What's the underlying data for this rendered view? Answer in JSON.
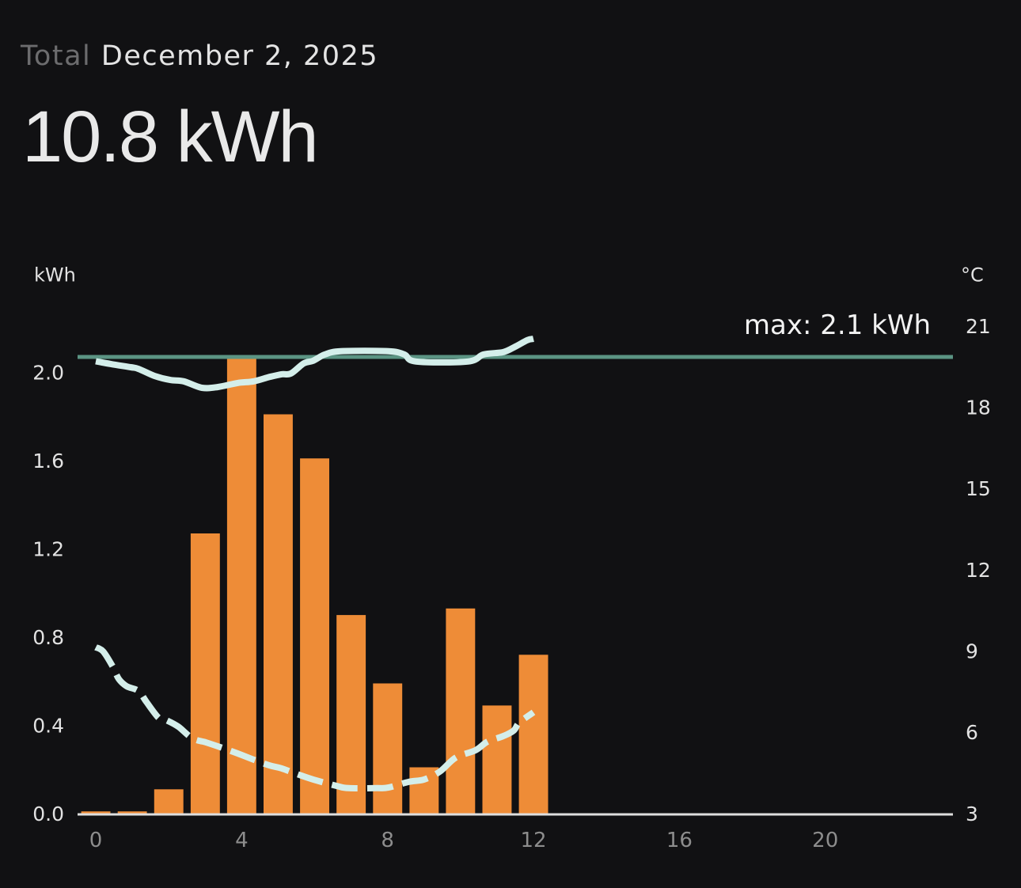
{
  "header": {
    "label": "Total",
    "date": "December 2, 2025",
    "total_value": "10.8",
    "total_unit": "kWh"
  },
  "colors": {
    "background": "#111113",
    "bar": "#EE8C37",
    "max_line": "#5B9483",
    "temperature_line": "#D4EEEA",
    "axis_line": "#DEDEDE",
    "header_label": "#6C6C6E",
    "x_tick": "#8D8D8D"
  },
  "chart_data": {
    "type": "bar",
    "title": "Total December 2, 2025",
    "subtitle": "10.8 kWh",
    "xlabel": "",
    "ylabel": "kWh",
    "y2label": "°C",
    "xlim": [
      -0.5,
      23.5
    ],
    "ylim": [
      0,
      2.21
    ],
    "y2lim": [
      3,
      21
    ],
    "xticks": [
      0,
      4,
      8,
      12,
      16,
      20
    ],
    "xtick_labels": [
      "0",
      "4",
      "8",
      "12",
      "16",
      "20"
    ],
    "yticks": [
      0.0,
      0.4,
      0.8,
      1.2,
      1.6,
      2.0
    ],
    "ytick_labels": [
      "0.0",
      "0.4",
      "0.8",
      "1.2",
      "1.6",
      "2.0"
    ],
    "y2ticks": [
      3,
      6,
      9,
      12,
      15,
      18,
      21
    ],
    "y2tick_labels": [
      "3",
      "6",
      "9",
      "12",
      "15",
      "18",
      "21"
    ],
    "grid": false,
    "legend": null,
    "categories": [
      0,
      1,
      2,
      3,
      4,
      5,
      6,
      7,
      8,
      9,
      10,
      11,
      12
    ],
    "series": [
      {
        "name": "energy (kWh bars)",
        "type": "bar",
        "axis": "left",
        "unit": "kWh",
        "color": "#EE8C37",
        "bar_width": 0.8,
        "x": [
          0,
          1,
          2,
          3,
          4,
          5,
          6,
          7,
          8,
          9,
          10,
          11,
          12
        ],
        "values": [
          0.01,
          0.01,
          0.11,
          1.27,
          2.07,
          1.81,
          1.61,
          0.9,
          0.59,
          0.21,
          0.93,
          0.49,
          0.72
        ]
      },
      {
        "name": "temperature (°C solid line)",
        "type": "line",
        "style": "solid",
        "axis": "right",
        "unit": "°C",
        "color": "#D4EEEA",
        "x": [
          0,
          0.41,
          0.96,
          1.17,
          1.61,
          2.04,
          2.41,
          2.91,
          3.35,
          3.89,
          4.33,
          4.76,
          5.09,
          5.35,
          5.7,
          5.96,
          6.28,
          6.72,
          8.02,
          8.46,
          8.78,
          10.2,
          10.63,
          11.17,
          11.5,
          11.83,
          12
        ],
        "values": [
          19.7,
          19.6,
          19.48,
          19.42,
          19.16,
          19.01,
          18.96,
          18.72,
          18.75,
          18.9,
          18.96,
          19.12,
          19.22,
          19.25,
          19.62,
          19.72,
          19.95,
          20.07,
          20.07,
          19.95,
          19.69,
          19.69,
          19.95,
          20.04,
          20.24,
          20.48,
          20.53
        ]
      },
      {
        "name": "temperature (°C dashed line)",
        "type": "line",
        "style": "dashed",
        "axis": "right",
        "unit": "°C",
        "color": "#D4EEEA",
        "x": [
          0,
          0.2,
          0.46,
          0.63,
          0.85,
          1.17,
          1.39,
          1.72,
          1.93,
          2.26,
          2.65,
          3.02,
          3.46,
          3.89,
          4.33,
          4.76,
          5.09,
          5.52,
          5.96,
          6.61,
          6.93,
          7.7,
          8.02,
          8.57,
          9.0,
          9.43,
          9.87,
          10.41,
          10.74,
          11.17,
          11.46,
          11.61,
          12
        ],
        "values": [
          9.14,
          8.99,
          8.44,
          7.97,
          7.7,
          7.53,
          7.12,
          6.54,
          6.45,
          6.21,
          5.78,
          5.63,
          5.43,
          5.22,
          4.99,
          4.78,
          4.67,
          4.46,
          4.26,
          4.02,
          3.94,
          3.94,
          3.96,
          4.17,
          4.26,
          4.55,
          5.07,
          5.34,
          5.66,
          5.86,
          6.07,
          6.36,
          6.74
        ]
      }
    ],
    "annotations": [
      {
        "type": "hline",
        "axis": "left",
        "y": 2.07,
        "label": "max: 2.1 kWh",
        "color": "#5B9483"
      }
    ]
  }
}
